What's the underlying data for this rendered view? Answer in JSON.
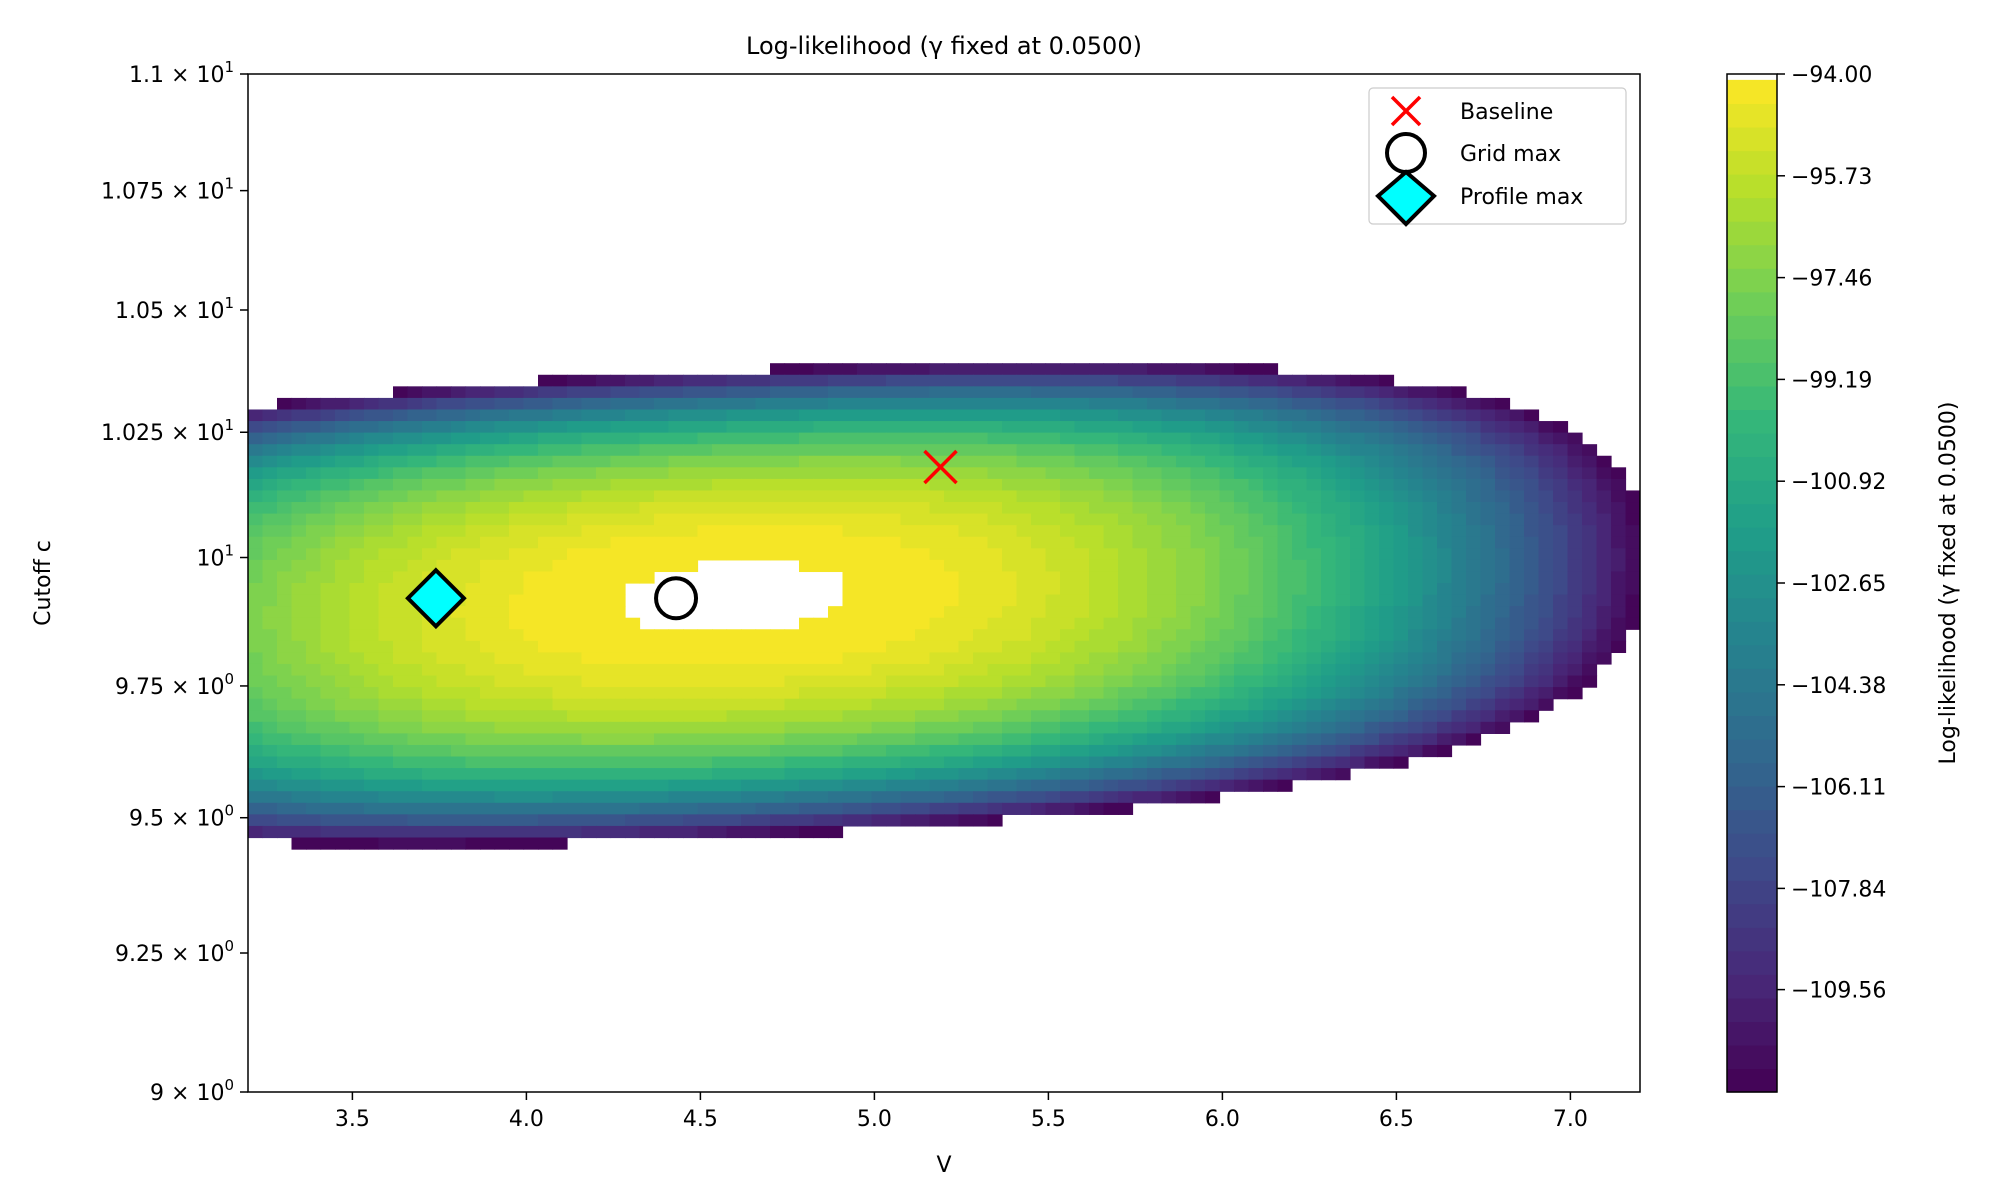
{
  "chart_data": {
    "type": "heatmap",
    "title": "Log-likelihood (γ fixed at 0.0500)",
    "xlabel": "V",
    "ylabel": "Cutoff c",
    "xlim": [
      3.2,
      7.2
    ],
    "ylim": [
      9.0,
      11.0
    ],
    "y_scale": "log",
    "x_ticks": [
      {
        "value": 3.5,
        "label": "3.5"
      },
      {
        "value": 4.0,
        "label": "4.0"
      },
      {
        "value": 4.5,
        "label": "4.5"
      },
      {
        "value": 5.0,
        "label": "5.0"
      },
      {
        "value": 5.5,
        "label": "5.5"
      },
      {
        "value": 6.0,
        "label": "6.0"
      },
      {
        "value": 6.5,
        "label": "6.5"
      },
      {
        "value": 7.0,
        "label": "7.0"
      }
    ],
    "y_ticks": [
      {
        "value": 9.0,
        "mant": "9",
        "exp": "0"
      },
      {
        "value": 9.25,
        "mant": "9.25",
        "exp": "0"
      },
      {
        "value": 9.5,
        "mant": "9.5",
        "exp": "0"
      },
      {
        "value": 9.75,
        "mant": "9.75",
        "exp": "0"
      },
      {
        "value": 10.0,
        "mant": "10",
        "exp": "1"
      },
      {
        "value": 10.25,
        "mant": "1.025",
        "exp": "1"
      },
      {
        "value": 10.5,
        "mant": "1.05",
        "exp": "1"
      },
      {
        "value": 10.75,
        "mant": "1.075",
        "exp": "1"
      },
      {
        "value": 11.0,
        "mant": "1.1",
        "exp": "1"
      }
    ],
    "colormap": "viridis",
    "levels": {
      "min": -111.3,
      "max": -94.0,
      "step": 0.4
    },
    "surface_peak": {
      "V": 4.6,
      "c": 9.92,
      "value": -93.85
    },
    "colorbar": {
      "label": "Log-likelihood (γ fixed at 0.0500)",
      "range": [
        -111.3,
        -94.0
      ],
      "ticks": [
        "−94.00",
        "−95.73",
        "−97.46",
        "−99.19",
        "−100.92",
        "−102.65",
        "−104.38",
        "−106.11",
        "−107.84",
        "−109.56"
      ],
      "tick_values": [
        -94.0,
        -95.73,
        -97.46,
        -99.19,
        -100.92,
        -102.65,
        -104.38,
        -106.11,
        -107.84,
        -109.56
      ]
    },
    "markers": [
      {
        "name": "Baseline",
        "V": 5.19,
        "c": 10.18,
        "symbol": "x",
        "color": "#ff0000"
      },
      {
        "name": "Grid max",
        "V": 4.43,
        "c": 9.92,
        "symbol": "circle",
        "color": "#ffffff"
      },
      {
        "name": "Profile max",
        "V": 3.74,
        "c": 9.92,
        "symbol": "diamond",
        "color": "#00ffff"
      }
    ],
    "legend_position": "top-right"
  }
}
